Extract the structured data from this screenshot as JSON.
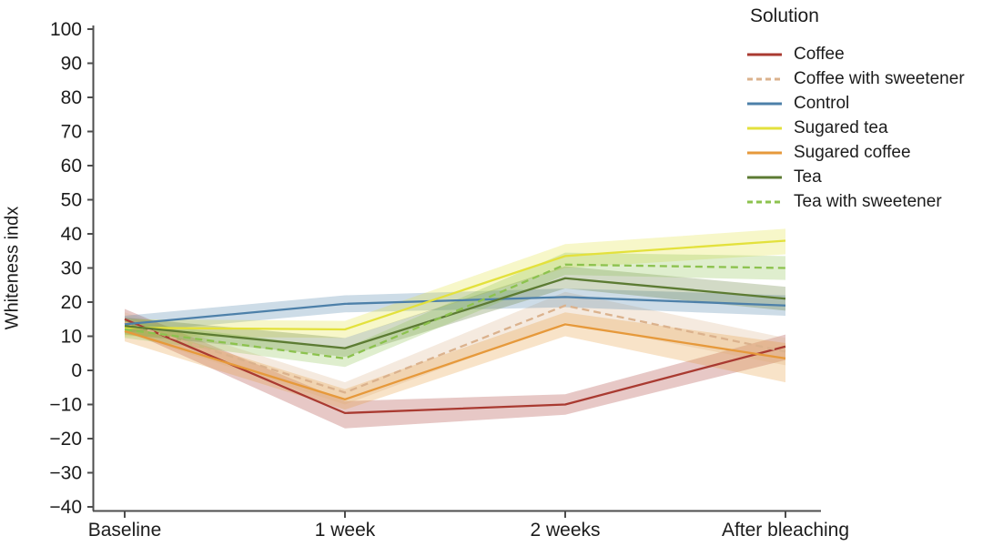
{
  "figure": {
    "background": "#ffffff",
    "axis_color": "#4d4d4d",
    "text_color": "#1c1c1c"
  },
  "chart_data": {
    "type": "line",
    "title": "",
    "legend_title": "Solution",
    "legend_position": "top-right",
    "ylabel": "Whiteness indx",
    "xlabel": "",
    "grid": false,
    "categories": [
      "Baseline",
      "1 week",
      "2 weeks",
      "After bleaching"
    ],
    "ylim": [
      -40,
      100
    ],
    "yticks": [
      100,
      90,
      80,
      70,
      60,
      50,
      40,
      30,
      20,
      10,
      0,
      -10,
      -20,
      -30,
      -40
    ],
    "band_opacity": 0.28,
    "series": [
      {
        "name": "Coffee",
        "color": "#a93a31",
        "dash": false,
        "values": [
          15,
          -12.5,
          -10,
          7
        ],
        "band_lower": [
          12,
          -17,
          -13,
          3
        ],
        "band_upper": [
          18,
          -9,
          -7,
          10.5
        ]
      },
      {
        "name": "Coffee with sweetener",
        "color": "#dbb28d",
        "dash": true,
        "values": [
          14,
          -6.5,
          19,
          5.5
        ],
        "band_lower": [
          11,
          -10,
          14,
          1.5
        ],
        "band_upper": [
          17,
          -3.5,
          23,
          9.5
        ]
      },
      {
        "name": "Control",
        "color": "#4d80a9",
        "dash": false,
        "values": [
          13.5,
          19.5,
          21.5,
          19
        ],
        "band_lower": [
          11,
          17,
          18.5,
          16
        ],
        "band_upper": [
          16,
          22,
          24,
          22
        ]
      },
      {
        "name": "Sugared tea",
        "color": "#e3e13c",
        "dash": false,
        "values": [
          12.5,
          12,
          33.5,
          38
        ],
        "band_lower": [
          10,
          9.5,
          30,
          34
        ],
        "band_upper": [
          15,
          14.5,
          37,
          41.5
        ]
      },
      {
        "name": "Sugared coffee",
        "color": "#e6993b",
        "dash": false,
        "values": [
          11.5,
          -8.5,
          13.5,
          3.5
        ],
        "band_lower": [
          8.5,
          -11.5,
          10,
          -3.5
        ],
        "band_upper": [
          14.5,
          -5.5,
          17,
          8
        ]
      },
      {
        "name": "Tea",
        "color": "#5c7b33",
        "dash": false,
        "values": [
          13,
          6.5,
          27,
          21
        ],
        "band_lower": [
          10.5,
          4,
          24,
          17.5
        ],
        "band_upper": [
          15.5,
          9.5,
          30.5,
          24.5
        ]
      },
      {
        "name": "Tea with sweetener",
        "color": "#8cc24e",
        "dash": true,
        "values": [
          12,
          3.5,
          31,
          30
        ],
        "band_lower": [
          9.5,
          1,
          28,
          26.5
        ],
        "band_upper": [
          14.5,
          6.5,
          34.5,
          33.5
        ]
      }
    ]
  }
}
